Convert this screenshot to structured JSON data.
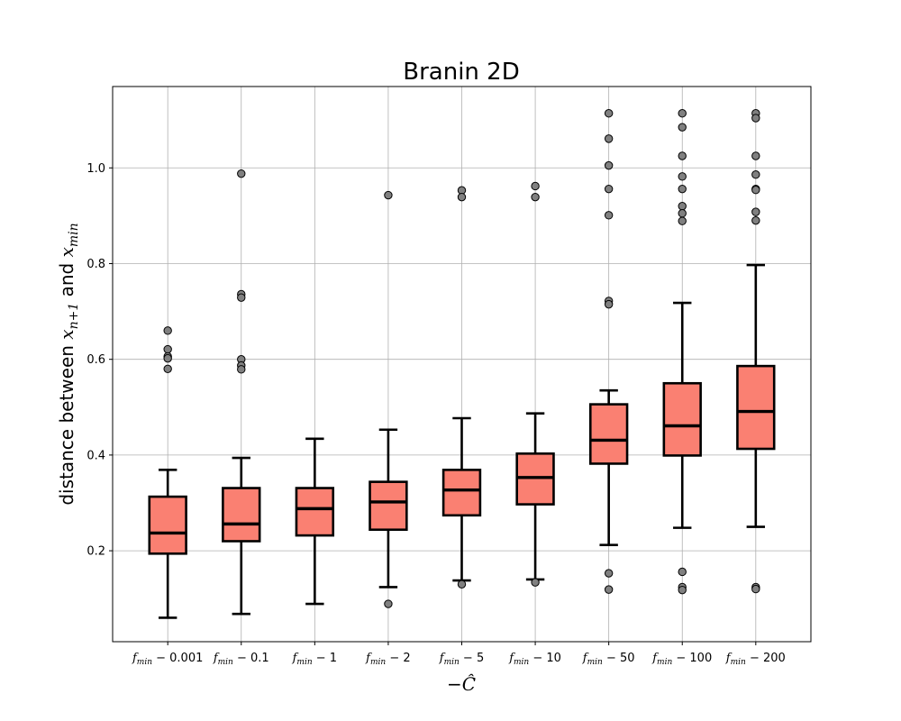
{
  "chart_data": {
    "type": "box",
    "title": "Branin 2D",
    "xlabel": {
      "prefix": "−",
      "symbol": "Ĉ"
    },
    "ylabel": {
      "text": "distance between ",
      "var1": "x",
      "sub1": "n+1",
      "conj": " and ",
      "var2": "x",
      "sub2": "min"
    },
    "ylim": [
      0.01,
      1.17
    ],
    "yticks": [
      0.2,
      0.4,
      0.6,
      0.8,
      1.0
    ],
    "ytick_labels": [
      "0.2",
      "0.4",
      "0.6",
      "0.8",
      "1.0"
    ],
    "grid": true,
    "categories": [
      {
        "base": "f",
        "sub": "min",
        "rest": " − 0.001"
      },
      {
        "base": "f",
        "sub": "min",
        "rest": " − 0.1"
      },
      {
        "base": "f",
        "sub": "min",
        "rest": " − 1"
      },
      {
        "base": "f",
        "sub": "min",
        "rest": " − 2"
      },
      {
        "base": "f",
        "sub": "min",
        "rest": " − 5"
      },
      {
        "base": "f",
        "sub": "min",
        "rest": " − 10"
      },
      {
        "base": "f",
        "sub": "min",
        "rest": " − 50"
      },
      {
        "base": "f",
        "sub": "min",
        "rest": " − 100"
      },
      {
        "base": "f",
        "sub": "min",
        "rest": " − 200"
      }
    ],
    "boxes": [
      {
        "whisker_low": 0.06,
        "q1": 0.194,
        "median": 0.237,
        "q3": 0.313,
        "whisker_high": 0.369,
        "outliers": [
          0.66,
          0.621,
          0.606,
          0.602,
          0.58
        ]
      },
      {
        "whisker_low": 0.068,
        "q1": 0.22,
        "median": 0.256,
        "q3": 0.331,
        "whisker_high": 0.394,
        "outliers": [
          0.988,
          0.736,
          0.729,
          0.6,
          0.587,
          0.579
        ]
      },
      {
        "whisker_low": 0.089,
        "q1": 0.232,
        "median": 0.288,
        "q3": 0.331,
        "whisker_high": 0.434,
        "outliers": []
      },
      {
        "whisker_low": 0.124,
        "q1": 0.244,
        "median": 0.302,
        "q3": 0.344,
        "whisker_high": 0.453,
        "outliers": [
          0.943,
          0.089
        ]
      },
      {
        "whisker_low": 0.138,
        "q1": 0.274,
        "median": 0.327,
        "q3": 0.369,
        "whisker_high": 0.477,
        "outliers": [
          0.953,
          0.939,
          0.13
        ]
      },
      {
        "whisker_low": 0.14,
        "q1": 0.297,
        "median": 0.353,
        "q3": 0.403,
        "whisker_high": 0.487,
        "outliers": [
          0.962,
          0.939,
          0.134
        ]
      },
      {
        "whisker_low": 0.212,
        "q1": 0.382,
        "median": 0.431,
        "q3": 0.506,
        "whisker_high": 0.535,
        "outliers": [
          1.114,
          1.061,
          1.005,
          0.956,
          0.901,
          0.722,
          0.715,
          0.153,
          0.119
        ]
      },
      {
        "whisker_low": 0.248,
        "q1": 0.399,
        "median": 0.461,
        "q3": 0.55,
        "whisker_high": 0.718,
        "outliers": [
          1.114,
          1.085,
          1.025,
          0.982,
          0.956,
          0.92,
          0.905,
          0.889,
          0.156,
          0.124,
          0.118
        ]
      },
      {
        "whisker_low": 0.25,
        "q1": 0.413,
        "median": 0.491,
        "q3": 0.586,
        "whisker_high": 0.797,
        "outliers": [
          1.114,
          1.104,
          1.025,
          0.986,
          0.956,
          0.954,
          0.908,
          0.89,
          0.124,
          0.12
        ]
      }
    ],
    "colors": {
      "box_fill": "#fa8072",
      "box_edge": "#000000",
      "outlier_fill": "#808080",
      "grid": "#b0b0b0"
    }
  }
}
